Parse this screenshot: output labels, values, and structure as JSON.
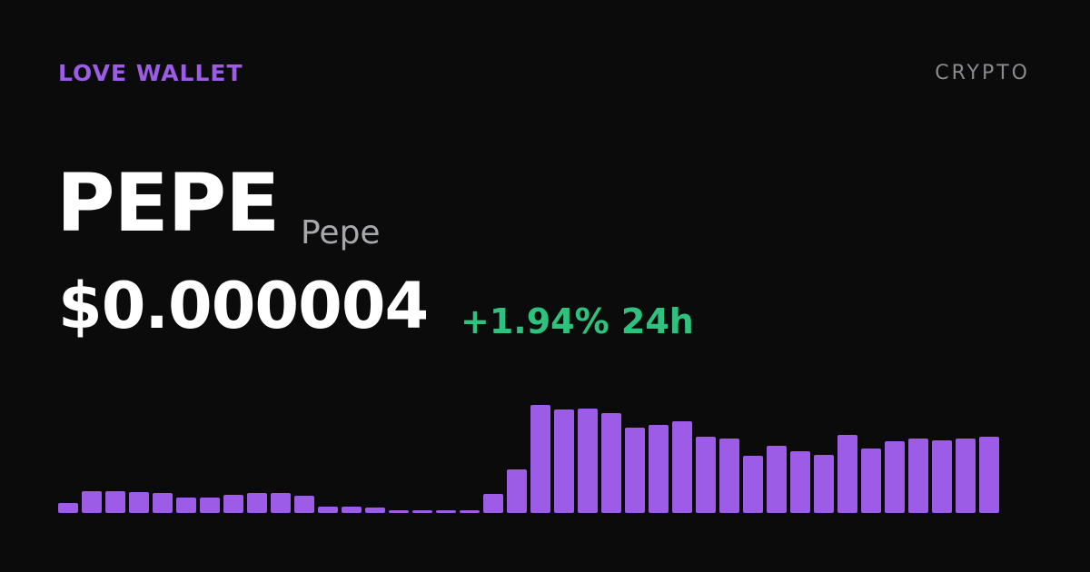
{
  "header": {
    "brand": "LOVE WALLET",
    "category": "CRYPTO"
  },
  "asset": {
    "symbol": "PEPE",
    "name": "Pepe",
    "price": "$0.000004",
    "change": "+1.94% 24h"
  },
  "chart_data": {
    "type": "bar",
    "color": "#9d5ce6",
    "values": [
      11,
      24,
      24,
      23,
      22,
      17,
      17,
      20,
      22,
      22,
      19,
      7,
      7,
      6,
      3,
      3,
      3,
      3,
      21,
      48,
      119,
      114,
      115,
      110,
      94,
      97,
      101,
      84,
      82,
      63,
      74,
      68,
      64,
      86,
      71,
      79,
      82,
      80,
      82,
      84
    ]
  }
}
